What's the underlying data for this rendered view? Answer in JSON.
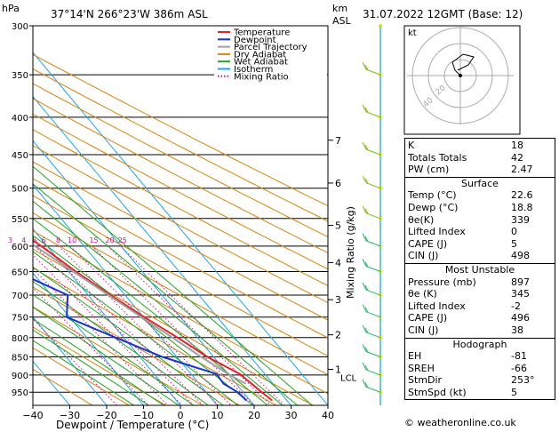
{
  "header": {
    "hpa_unit": "hPa",
    "location": "37°14'N  266°23'W  386m  ASL",
    "km_unit": "km",
    "asl_unit": "ASL",
    "datetime": "31.07.2022  12GMT  (Base: 12)"
  },
  "colors": {
    "temperature": "#e8202a",
    "dewpoint": "#1733d6",
    "parcel": "#a0a0a0",
    "dry_adiabat": "#d8850c",
    "wet_adiabat": "#1fa51f",
    "isotherm": "#1fa5ea",
    "mixing_ratio": "#d6109a"
  },
  "chart_data": {
    "type": "line",
    "xlabel": "Dewpoint / Temperature (°C)",
    "ylabel": "Mixing Ratio (g/kg)",
    "x_ticks": [
      -40,
      -30,
      -20,
      -10,
      0,
      10,
      20,
      30,
      40
    ],
    "pressure_levels": [
      300,
      350,
      400,
      450,
      500,
      550,
      600,
      650,
      700,
      750,
      800,
      850,
      900,
      950
    ],
    "xlim": [
      -40,
      40
    ],
    "ylim": [
      300,
      990
    ],
    "skew_degC_per_log_unit": 166,
    "legend": [
      {
        "name": "Temperature",
        "key": "temperature"
      },
      {
        "name": "Dewpoint",
        "key": "dewpoint"
      },
      {
        "name": "Parcel Trajectory",
        "key": "parcel"
      },
      {
        "name": "Dry Adiabat",
        "key": "dry_adiabat"
      },
      {
        "name": "Wet Adiabat",
        "key": "wet_adiabat"
      },
      {
        "name": "Isotherm",
        "key": "isotherm"
      },
      {
        "name": "Mixing Ratio",
        "key": "mixing_ratio"
      }
    ],
    "series": [
      {
        "name": "Temperature",
        "key": "temperature",
        "points": [
          [
            975,
            26.0
          ],
          [
            950,
            25.0
          ],
          [
            925,
            24.2
          ],
          [
            897,
            23.2
          ],
          [
            850,
            18.3
          ],
          [
            800,
            14.6
          ],
          [
            750,
            10.2
          ],
          [
            700,
            6.0
          ],
          [
            650,
            2.0
          ],
          [
            600,
            -1.6
          ],
          [
            550,
            -6.2
          ],
          [
            500,
            -10.9
          ],
          [
            450,
            -16.8
          ],
          [
            400,
            -23.2
          ],
          [
            350,
            -31.2
          ],
          [
            300,
            -40.1
          ]
        ]
      },
      {
        "name": "Dewpoint",
        "key": "dewpoint",
        "points": [
          [
            975,
            19.0
          ],
          [
            950,
            18.5
          ],
          [
            925,
            16.6
          ],
          [
            897,
            16.9
          ],
          [
            850,
            6.1
          ],
          [
            800,
            -2.2
          ],
          [
            750,
            -10.8
          ],
          [
            700,
            -5.6
          ],
          [
            650,
            -14.2
          ],
          [
            600,
            -4.3
          ],
          [
            550,
            -11.8
          ],
          [
            500,
            -23.6
          ],
          [
            490,
            -20.4
          ],
          [
            450,
            -56.0
          ],
          [
            400,
            -60.0
          ],
          [
            350,
            -63.0
          ],
          [
            300,
            -66.4
          ]
        ]
      },
      {
        "name": "Parcel Trajectory",
        "key": "parcel",
        "points": [
          [
            925,
            22.6
          ],
          [
            897,
            20.0
          ],
          [
            850,
            16.6
          ],
          [
            800,
            13.2
          ],
          [
            750,
            9.4
          ],
          [
            700,
            5.5
          ],
          [
            650,
            1.3
          ],
          [
            600,
            -3.3
          ],
          [
            550,
            -8.3
          ],
          [
            500,
            -13.8
          ]
        ]
      }
    ],
    "dry_adiabats_K": [
      250,
      260,
      270,
      280,
      290,
      300,
      310,
      320,
      330,
      340,
      350,
      360,
      370,
      380,
      390,
      400,
      410,
      420,
      430
    ],
    "wet_adiabats_C": [
      -12,
      -8,
      -4,
      0,
      4,
      8,
      12,
      16,
      20,
      24,
      28,
      32,
      36
    ],
    "isotherms_C": [
      -110,
      -100,
      -90,
      -80,
      -70,
      -60,
      -50,
      -40,
      -30,
      -20,
      -10,
      0,
      10,
      20,
      30,
      40
    ],
    "mixing_ratio_lines": [
      {
        "label": "1",
        "value": 1
      },
      {
        "label": "2",
        "value": 2
      },
      {
        "label": "3",
        "value": 3
      },
      {
        "label": "4",
        "value": 4
      },
      {
        "label": "5",
        "value": 5
      },
      {
        "label": "6",
        "value": 6
      },
      {
        "label": "8",
        "value": 8
      },
      {
        "label": "10",
        "value": 10
      },
      {
        "label": "15",
        "value": 15
      },
      {
        "label": "20",
        "value": 20
      },
      {
        "label": "25",
        "value": 25
      }
    ],
    "km_labels": [
      {
        "km": "7",
        "p": 430
      },
      {
        "km": "6",
        "p": 492
      },
      {
        "km": "5",
        "p": 562
      },
      {
        "km": "4",
        "p": 632
      },
      {
        "km": "3",
        "p": 710
      },
      {
        "km": "2",
        "p": 793
      },
      {
        "km": "1",
        "p": 884
      }
    ],
    "lcl_label": "LCL",
    "lcl_p": 897,
    "hodograph": {
      "label": "kt",
      "ring_labels": [
        "20",
        "40"
      ],
      "points": [
        [
          0,
          0
        ],
        [
          -2,
          2
        ],
        [
          -3,
          5
        ],
        [
          1,
          8
        ],
        [
          5,
          7
        ],
        [
          3,
          4
        ],
        [
          -1,
          2
        ]
      ]
    }
  },
  "indices": {
    "rows": [
      {
        "label": "K",
        "value": "18"
      },
      {
        "label": "Totals Totals",
        "value": "42"
      },
      {
        "label": "PW (cm)",
        "value": "2.47"
      }
    ]
  },
  "surface": {
    "title": "Surface",
    "rows": [
      {
        "label": "Temp (°C)",
        "value": "22.6"
      },
      {
        "label": "Dewp (°C)",
        "value": "18.8"
      },
      {
        "label": "θe(K)",
        "value": "339"
      },
      {
        "label": "Lifted Index",
        "value": "0"
      },
      {
        "label": "CAPE (J)",
        "value": "5"
      },
      {
        "label": "CIN (J)",
        "value": "498"
      }
    ]
  },
  "most_unstable": {
    "title": "Most Unstable",
    "rows": [
      {
        "label": "Pressure (mb)",
        "value": "897"
      },
      {
        "label": "θe (K)",
        "value": "345"
      },
      {
        "label": "Lifted Index",
        "value": "-2"
      },
      {
        "label": "CAPE (J)",
        "value": "496"
      },
      {
        "label": "CIN (J)",
        "value": "38"
      }
    ]
  },
  "hodograph_table": {
    "title": "Hodograph",
    "rows": [
      {
        "label": "EH",
        "value": "-81"
      },
      {
        "label": "SREH",
        "value": "-66"
      },
      {
        "label": "StmDir",
        "value": "253°"
      },
      {
        "label": "StmSpd (kt)",
        "value": "5"
      }
    ]
  },
  "copyright": "© weatheronline.co.uk"
}
